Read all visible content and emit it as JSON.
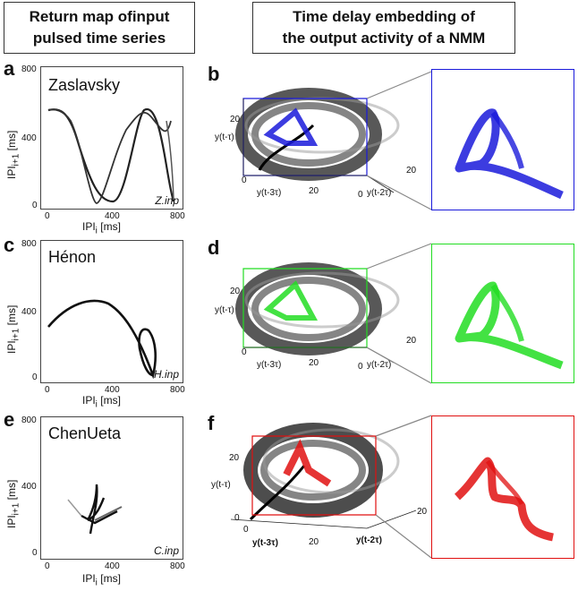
{
  "headers": {
    "left": [
      "Return map ofinput",
      "pulsed time series"
    ],
    "right": [
      "Time delay embedding of",
      "the output activity of a NMM"
    ]
  },
  "rows": [
    {
      "left_letter": "a",
      "right_letter": "b",
      "name": "Zaslavsky",
      "inp": "Z.inp",
      "y_ticks": [
        "800",
        "400",
        "0"
      ],
      "x_ticks": [
        "0",
        "400",
        "800"
      ],
      "color": "#1a1adb"
    },
    {
      "left_letter": "c",
      "right_letter": "d",
      "name": "Hénon",
      "inp": "H.inp",
      "y_ticks": [
        "800",
        "400",
        "0"
      ],
      "x_ticks": [
        "0",
        "400",
        "800"
      ],
      "color": "#22dd22"
    },
    {
      "left_letter": "e",
      "right_letter": "f",
      "name": "ChenUeta",
      "inp": "C.inp",
      "y_ticks": [
        "800",
        "400",
        "0"
      ],
      "x_ticks": [
        "0",
        "400",
        "800"
      ],
      "color": "#e01010"
    }
  ],
  "axes": {
    "ylabel": "IPI",
    "ylabel_sub": "i+1",
    "ylabel_unit": " [ms]",
    "xlabel": "IPI",
    "xlabel_sub": "i",
    "xlabel_unit": " [ms]",
    "ytau": "y(t-τ)",
    "y3tau": "y(t-3τ)",
    "y2tau": "y(t-2τ)",
    "t20": "20",
    "t0": "0"
  }
}
